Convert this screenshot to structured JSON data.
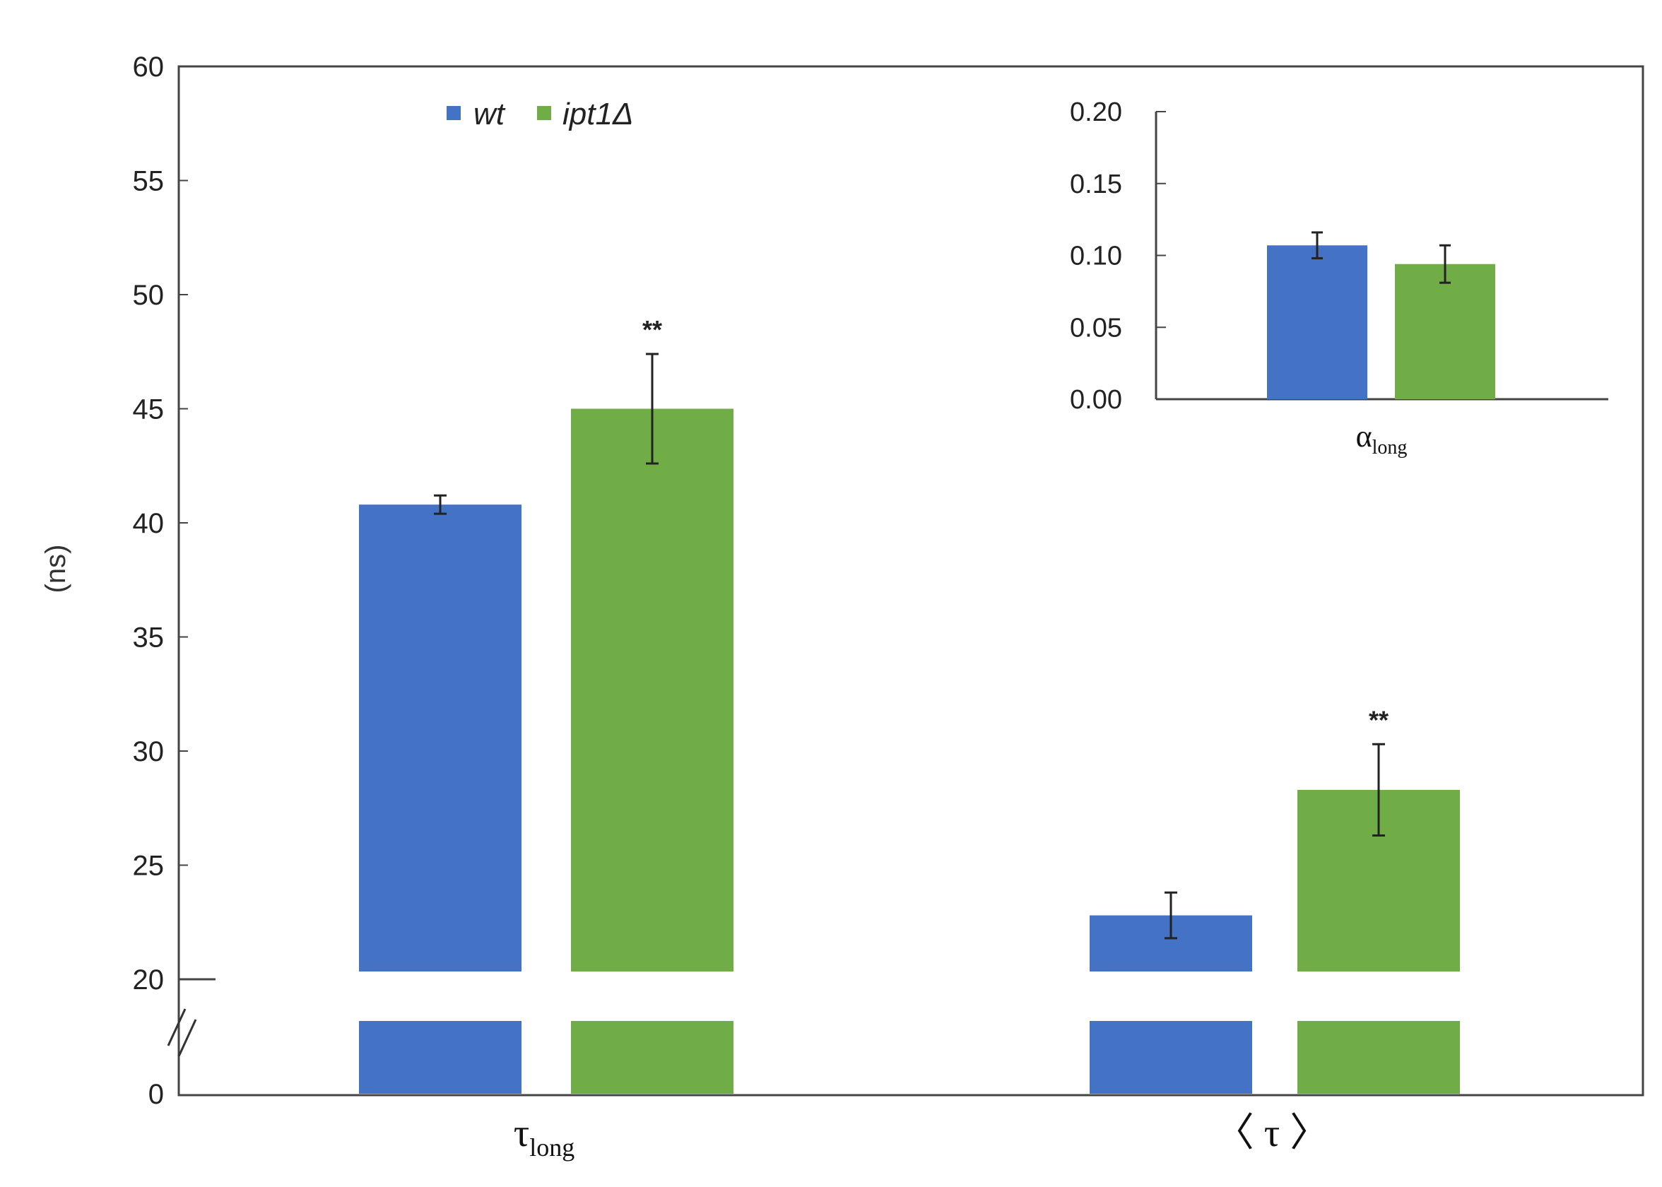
{
  "chart_data": [
    {
      "type": "bar",
      "ylabel": "(ns)",
      "ylim": [
        0,
        60
      ],
      "axis_break": "broken y-axis between 0 and 20",
      "yticks": [
        "0",
        "20",
        "25",
        "30",
        "35",
        "40",
        "45",
        "50",
        "55",
        "60"
      ],
      "categories": [
        {
          "main": "τ",
          "sub": "long"
        },
        {
          "main": "〈 τ 〉",
          "sub": ""
        }
      ],
      "series": [
        {
          "name": "wt",
          "color": "#4472c4",
          "values": [
            40.8,
            22.8
          ],
          "errors": [
            0.4,
            1.0
          ]
        },
        {
          "name": "ipt1Δ",
          "color": "#70ad47",
          "values": [
            45.0,
            28.3
          ],
          "errors": [
            2.4,
            2.0
          ]
        }
      ],
      "annotations": [
        "**",
        "**"
      ],
      "legend": "top-left"
    },
    {
      "type": "bar",
      "inset": true,
      "ylim": [
        0,
        0.2
      ],
      "yticks": [
        "0.00",
        "0.05",
        "0.10",
        "0.15",
        "0.20"
      ],
      "category": {
        "main": "α",
        "sub": "long"
      },
      "series": [
        {
          "name": "wt",
          "color": "#4472c4",
          "value": 0.107,
          "error": 0.009
        },
        {
          "name": "ipt1Δ",
          "color": "#70ad47",
          "value": 0.094,
          "error": 0.013
        }
      ]
    }
  ]
}
